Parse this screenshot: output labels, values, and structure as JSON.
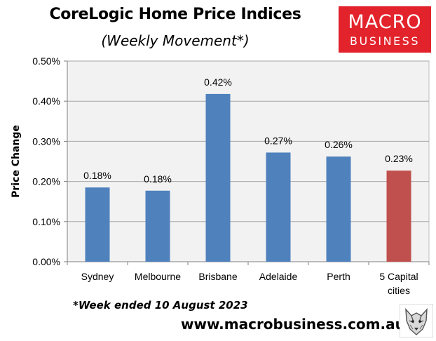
{
  "header": {
    "title": "CoreLogic Home Price Indices",
    "subtitle": "(Weekly Movement*)"
  },
  "logo": {
    "line1": "MACRO",
    "line2": "BUSINESS",
    "color": "#e3232b"
  },
  "chart_data": {
    "type": "bar",
    "categories": [
      "Sydney",
      "Melbourne",
      "Brisbane",
      "Adelaide",
      "Perth",
      "5 Capital cities"
    ],
    "values": [
      0.185,
      0.177,
      0.418,
      0.272,
      0.262,
      0.227
    ],
    "data_labels": [
      "0.18%",
      "0.18%",
      "0.42%",
      "0.27%",
      "0.26%",
      "0.23%"
    ],
    "bar_colors": [
      "#4f81bd",
      "#4f81bd",
      "#4f81bd",
      "#4f81bd",
      "#4f81bd",
      "#c0504d"
    ],
    "ylabel": "Price Change",
    "xlabel": "",
    "ylim": [
      0,
      0.5
    ],
    "yticks": [
      0,
      0.1,
      0.2,
      0.3,
      0.4,
      0.5
    ],
    "ytick_labels": [
      "0.00%",
      "0.10%",
      "0.20%",
      "0.30%",
      "0.40%",
      "0.50%"
    ],
    "plot_background": "#f2f2f2",
    "grid": true
  },
  "footer": {
    "footnote": "*Week ended 10 August 2023",
    "website": "www.macrobusiness.com.au"
  },
  "mascot_icon": "wolf-head-icon"
}
